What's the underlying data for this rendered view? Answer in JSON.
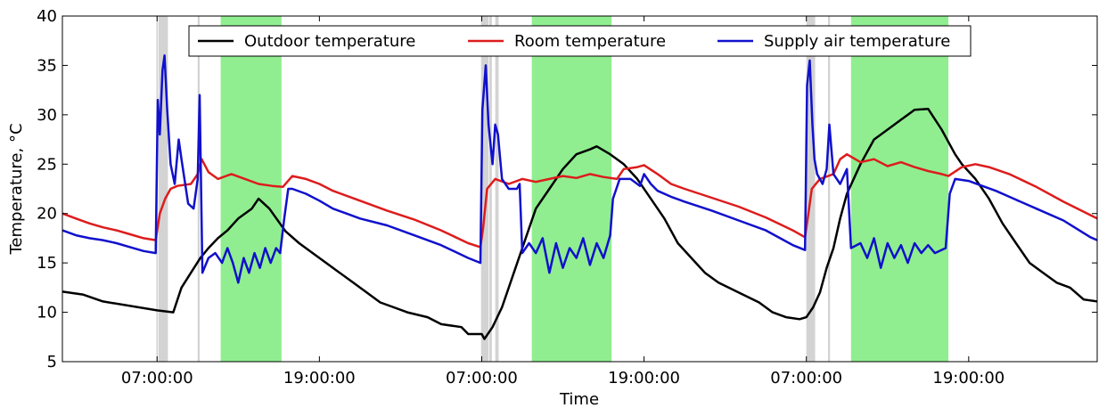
{
  "chart_data": {
    "type": "line",
    "xlabel": "Time",
    "ylabel": "Temperature, °C",
    "ylim": [
      5,
      40
    ],
    "xlim": [
      0,
      76.5
    ],
    "x_unit": "hours from midnight of day 1 (shown as clock time on axis)",
    "yticks": [
      5,
      10,
      15,
      20,
      25,
      30,
      35,
      40
    ],
    "xticks": [
      {
        "value": 7,
        "label": "07:00:00"
      },
      {
        "value": 19,
        "label": "19:00:00"
      },
      {
        "value": 31,
        "label": "07:00:00"
      },
      {
        "value": 43,
        "label": "19:00:00"
      },
      {
        "value": 55,
        "label": "07:00:00"
      },
      {
        "value": 67,
        "label": "19:00:00"
      }
    ],
    "legend": {
      "placement": "top-center",
      "columns": 3
    },
    "grid": false,
    "shaded_regions": [
      {
        "kind": "gray",
        "color": "#d3d3d3",
        "start": 6.95,
        "end": 7.05
      },
      {
        "kind": "gray",
        "color": "#d3d3d3",
        "start": 7.1,
        "end": 7.8
      },
      {
        "kind": "gray",
        "color": "#d3d3d3",
        "start": 10.0,
        "end": 10.15
      },
      {
        "kind": "green",
        "color": "#90ee90",
        "start": 11.7,
        "end": 16.2
      },
      {
        "kind": "gray",
        "color": "#d3d3d3",
        "start": 30.95,
        "end": 31.5
      },
      {
        "kind": "gray",
        "color": "#d3d3d3",
        "start": 31.55,
        "end": 31.75
      },
      {
        "kind": "gray",
        "color": "#d3d3d3",
        "start": 32.0,
        "end": 32.25
      },
      {
        "kind": "green",
        "color": "#90ee90",
        "start": 34.7,
        "end": 40.6
      },
      {
        "kind": "gray",
        "color": "#d3d3d3",
        "start": 55.0,
        "end": 55.65
      },
      {
        "kind": "gray",
        "color": "#d3d3d3",
        "start": 56.6,
        "end": 56.75
      },
      {
        "kind": "green",
        "color": "#90ee90",
        "start": 58.3,
        "end": 65.5
      }
    ],
    "series": [
      {
        "name": "Outdoor temperature",
        "color": "#000000",
        "points": [
          [
            0,
            12.1
          ],
          [
            1.5,
            11.8
          ],
          [
            3,
            11.1
          ],
          [
            7,
            10.2
          ],
          [
            8.2,
            10.0
          ],
          [
            8.8,
            12.5
          ],
          [
            9.5,
            14.0
          ],
          [
            10.2,
            15.5
          ],
          [
            10.8,
            16.5
          ],
          [
            11.5,
            17.5
          ],
          [
            12.2,
            18.3
          ],
          [
            13,
            19.5
          ],
          [
            14,
            20.5
          ],
          [
            14.5,
            21.5
          ],
          [
            15.3,
            20.5
          ],
          [
            16.5,
            18.2
          ],
          [
            17.5,
            17.0
          ],
          [
            18.5,
            16.0
          ],
          [
            19.5,
            15.0
          ],
          [
            20.5,
            14.0
          ],
          [
            21.5,
            13.0
          ],
          [
            22.5,
            12.0
          ],
          [
            23.5,
            11.0
          ],
          [
            24.5,
            10.5
          ],
          [
            25.5,
            10.0
          ],
          [
            27,
            9.5
          ],
          [
            28,
            8.8
          ],
          [
            29.5,
            8.5
          ],
          [
            30,
            7.8
          ],
          [
            31,
            7.8
          ],
          [
            31.2,
            7.3
          ],
          [
            31.8,
            8.5
          ],
          [
            32.5,
            10.5
          ],
          [
            33,
            12.5
          ],
          [
            33.5,
            14.5
          ],
          [
            34,
            16.5
          ],
          [
            34.5,
            18.5
          ],
          [
            35,
            20.5
          ],
          [
            36,
            22.5
          ],
          [
            37,
            24.5
          ],
          [
            38,
            26.0
          ],
          [
            39,
            26.5
          ],
          [
            39.5,
            26.8
          ],
          [
            40.5,
            26.0
          ],
          [
            41.5,
            25.0
          ],
          [
            42.5,
            23.5
          ],
          [
            43.5,
            21.5
          ],
          [
            44.5,
            19.5
          ],
          [
            45.5,
            17.0
          ],
          [
            46.5,
            15.5
          ],
          [
            47.5,
            14.0
          ],
          [
            48.5,
            13.0
          ],
          [
            50,
            12.0
          ],
          [
            51.5,
            11.0
          ],
          [
            52.5,
            10.0
          ],
          [
            53.5,
            9.5
          ],
          [
            54.5,
            9.3
          ],
          [
            55,
            9.5
          ],
          [
            55.5,
            10.5
          ],
          [
            56,
            12.0
          ],
          [
            56.5,
            14.5
          ],
          [
            57,
            16.5
          ],
          [
            57.5,
            19.5
          ],
          [
            58,
            22.0
          ],
          [
            59,
            25.0
          ],
          [
            60,
            27.5
          ],
          [
            61,
            28.5
          ],
          [
            62,
            29.5
          ],
          [
            63,
            30.5
          ],
          [
            64,
            30.6
          ],
          [
            65,
            28.5
          ],
          [
            66,
            26.0
          ],
          [
            66.5,
            25.0
          ],
          [
            67.5,
            23.5
          ],
          [
            68.5,
            21.5
          ],
          [
            69.5,
            19.0
          ],
          [
            70.5,
            17.0
          ],
          [
            71.5,
            15.0
          ],
          [
            72.5,
            14.0
          ],
          [
            73.5,
            13.0
          ],
          [
            74.5,
            12.5
          ],
          [
            75.5,
            11.3
          ],
          [
            76.5,
            11.1
          ]
        ]
      },
      {
        "name": "Room temperature",
        "color": "#dd1c1c",
        "points": [
          [
            0,
            20.0
          ],
          [
            1,
            19.5
          ],
          [
            2,
            19.0
          ],
          [
            3,
            18.6
          ],
          [
            4,
            18.3
          ],
          [
            5,
            17.9
          ],
          [
            6,
            17.5
          ],
          [
            6.9,
            17.3
          ],
          [
            7.2,
            20.0
          ],
          [
            7.6,
            21.5
          ],
          [
            8,
            22.5
          ],
          [
            8.5,
            22.8
          ],
          [
            9.5,
            23.0
          ],
          [
            10,
            24.0
          ],
          [
            10.3,
            25.5
          ],
          [
            10.8,
            24.2
          ],
          [
            11.5,
            23.5
          ],
          [
            12.5,
            24.0
          ],
          [
            13.5,
            23.5
          ],
          [
            14.5,
            23.0
          ],
          [
            15.5,
            22.8
          ],
          [
            16.3,
            22.7
          ],
          [
            17,
            23.8
          ],
          [
            18,
            23.5
          ],
          [
            19,
            23.0
          ],
          [
            20,
            22.3
          ],
          [
            22,
            21.3
          ],
          [
            24,
            20.3
          ],
          [
            26,
            19.4
          ],
          [
            28,
            18.3
          ],
          [
            30,
            17.0
          ],
          [
            30.9,
            16.6
          ],
          [
            31.1,
            18.5
          ],
          [
            31.4,
            22.5
          ],
          [
            32,
            23.5
          ],
          [
            33,
            23.0
          ],
          [
            34,
            23.5
          ],
          [
            35,
            23.2
          ],
          [
            36,
            23.5
          ],
          [
            37,
            23.8
          ],
          [
            38,
            23.6
          ],
          [
            39,
            24.0
          ],
          [
            40,
            23.7
          ],
          [
            41,
            23.5
          ],
          [
            41.5,
            24.5
          ],
          [
            42.5,
            24.7
          ],
          [
            43,
            24.9
          ],
          [
            44,
            24.0
          ],
          [
            45,
            23.0
          ],
          [
            46,
            22.5
          ],
          [
            48,
            21.6
          ],
          [
            50,
            20.7
          ],
          [
            52,
            19.6
          ],
          [
            54,
            18.3
          ],
          [
            54.9,
            17.6
          ],
          [
            55.1,
            19.5
          ],
          [
            55.4,
            22.5
          ],
          [
            56,
            23.5
          ],
          [
            57,
            24.0
          ],
          [
            57.5,
            25.5
          ],
          [
            58,
            26.0
          ],
          [
            59,
            25.2
          ],
          [
            60,
            25.5
          ],
          [
            61,
            24.8
          ],
          [
            62,
            25.2
          ],
          [
            63,
            24.7
          ],
          [
            64,
            24.3
          ],
          [
            65,
            24.0
          ],
          [
            65.5,
            23.8
          ],
          [
            66.5,
            24.7
          ],
          [
            67.5,
            25.0
          ],
          [
            68.5,
            24.7
          ],
          [
            70,
            24.0
          ],
          [
            72,
            22.7
          ],
          [
            74,
            21.2
          ],
          [
            76.5,
            19.5
          ]
        ]
      },
      {
        "name": "Supply air temperature",
        "color": "#1010cc",
        "points": [
          [
            0,
            18.3
          ],
          [
            1,
            17.8
          ],
          [
            2,
            17.5
          ],
          [
            3,
            17.3
          ],
          [
            4,
            17.0
          ],
          [
            5,
            16.6
          ],
          [
            6,
            16.2
          ],
          [
            6.9,
            16.0
          ],
          [
            7.05,
            31.5
          ],
          [
            7.2,
            28.0
          ],
          [
            7.4,
            34.5
          ],
          [
            7.55,
            36.0
          ],
          [
            7.75,
            30.5
          ],
          [
            8.0,
            25.0
          ],
          [
            8.3,
            23.0
          ],
          [
            8.6,
            27.5
          ],
          [
            8.8,
            25.5
          ],
          [
            9.3,
            21.0
          ],
          [
            9.7,
            20.5
          ],
          [
            10.0,
            23.5
          ],
          [
            10.15,
            32.0
          ],
          [
            10.35,
            14.0
          ],
          [
            10.8,
            15.5
          ],
          [
            11.3,
            16.0
          ],
          [
            11.8,
            15.0
          ],
          [
            12.2,
            16.5
          ],
          [
            12.6,
            15.0
          ],
          [
            13.0,
            13.0
          ],
          [
            13.4,
            15.5
          ],
          [
            13.8,
            14.0
          ],
          [
            14.2,
            16.0
          ],
          [
            14.6,
            14.5
          ],
          [
            15.0,
            16.5
          ],
          [
            15.4,
            15.0
          ],
          [
            15.8,
            16.5
          ],
          [
            16.1,
            16.0
          ],
          [
            16.4,
            19.5
          ],
          [
            16.7,
            22.5
          ],
          [
            17,
            22.5
          ],
          [
            18,
            22.0
          ],
          [
            19,
            21.3
          ],
          [
            20,
            20.5
          ],
          [
            21,
            20.0
          ],
          [
            22,
            19.5
          ],
          [
            24,
            18.8
          ],
          [
            26,
            17.8
          ],
          [
            28,
            16.8
          ],
          [
            30,
            15.5
          ],
          [
            30.9,
            15.0
          ],
          [
            31.05,
            30.5
          ],
          [
            31.3,
            35.0
          ],
          [
            31.5,
            29.0
          ],
          [
            31.8,
            25.0
          ],
          [
            32.0,
            29.0
          ],
          [
            32.2,
            28.0
          ],
          [
            32.5,
            23.5
          ],
          [
            33,
            22.5
          ],
          [
            33.6,
            22.5
          ],
          [
            33.8,
            23.0
          ],
          [
            34.0,
            16.0
          ],
          [
            34.5,
            17.0
          ],
          [
            35,
            16.0
          ],
          [
            35.5,
            17.5
          ],
          [
            36,
            14.0
          ],
          [
            36.5,
            17.0
          ],
          [
            37,
            14.5
          ],
          [
            37.5,
            16.5
          ],
          [
            38,
            15.5
          ],
          [
            38.5,
            17.5
          ],
          [
            39,
            14.8
          ],
          [
            39.5,
            17.0
          ],
          [
            40,
            15.5
          ],
          [
            40.5,
            17.8
          ],
          [
            40.7,
            21.5
          ],
          [
            41.2,
            23.5
          ],
          [
            42,
            23.5
          ],
          [
            42.7,
            22.8
          ],
          [
            43,
            24.0
          ],
          [
            43.5,
            23.0
          ],
          [
            44,
            22.3
          ],
          [
            45,
            21.7
          ],
          [
            46,
            21.2
          ],
          [
            48,
            20.3
          ],
          [
            50,
            19.3
          ],
          [
            52,
            18.3
          ],
          [
            54,
            16.8
          ],
          [
            54.9,
            16.3
          ],
          [
            55.05,
            33.0
          ],
          [
            55.25,
            35.5
          ],
          [
            55.45,
            29.0
          ],
          [
            55.6,
            25.5
          ],
          [
            55.8,
            24.0
          ],
          [
            56.2,
            23.0
          ],
          [
            56.5,
            24.5
          ],
          [
            56.7,
            29.0
          ],
          [
            57.0,
            24.0
          ],
          [
            57.5,
            23.0
          ],
          [
            58,
            24.5
          ],
          [
            58.3,
            16.5
          ],
          [
            59,
            17.0
          ],
          [
            59.5,
            15.5
          ],
          [
            60,
            17.5
          ],
          [
            60.5,
            14.5
          ],
          [
            61,
            17.0
          ],
          [
            61.5,
            15.5
          ],
          [
            62,
            16.8
          ],
          [
            62.5,
            15.0
          ],
          [
            63,
            17.0
          ],
          [
            63.5,
            16.0
          ],
          [
            64,
            16.8
          ],
          [
            64.5,
            16.0
          ],
          [
            65.3,
            16.5
          ],
          [
            65.6,
            22.0
          ],
          [
            66,
            23.5
          ],
          [
            67,
            23.3
          ],
          [
            68,
            22.8
          ],
          [
            69,
            22.3
          ],
          [
            70,
            21.7
          ],
          [
            72,
            20.5
          ],
          [
            74,
            19.3
          ],
          [
            76,
            17.6
          ],
          [
            76.5,
            17.3
          ]
        ]
      }
    ]
  }
}
